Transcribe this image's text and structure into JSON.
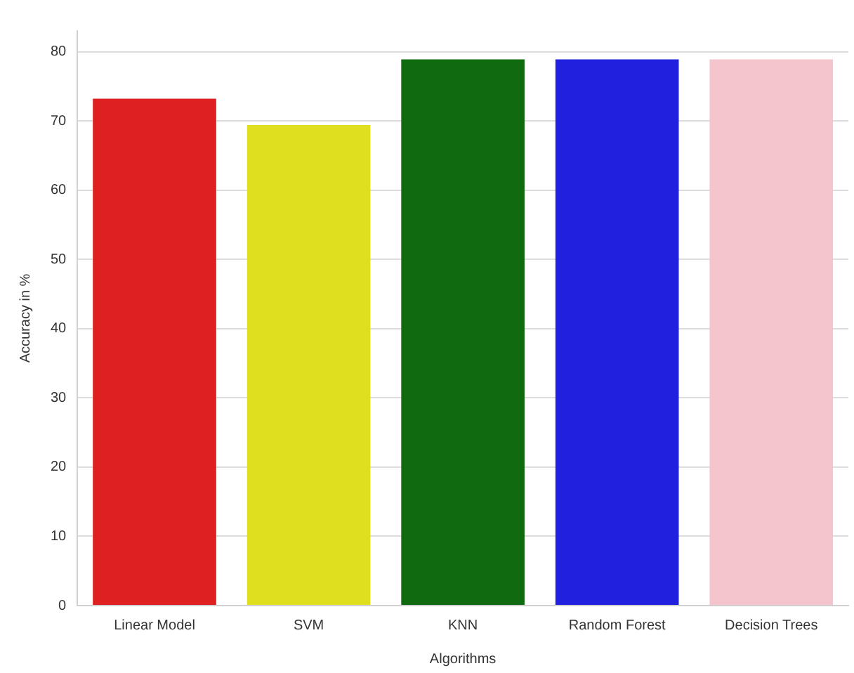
{
  "chart_data": {
    "type": "bar",
    "xlabel": "Algorithms",
    "ylabel": "Accuracy in %",
    "categories": [
      "Linear Model",
      "SVM",
      "KNN",
      "Random Forest",
      "Decision Trees"
    ],
    "values": [
      73.2,
      69.4,
      78.9,
      78.9,
      78.9
    ],
    "colors": [
      "#de2020",
      "#dfdf20",
      "#106b10",
      "#2020de",
      "#f5c5cd"
    ],
    "ylim": [
      0,
      83
    ],
    "yticks": [
      0,
      10,
      20,
      30,
      40,
      50,
      60,
      70,
      80
    ],
    "grid": "y",
    "legend": false
  }
}
